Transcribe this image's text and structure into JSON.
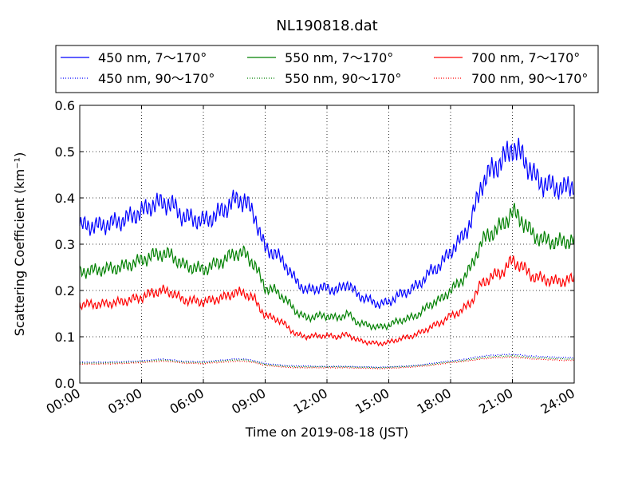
{
  "chart_data": {
    "type": "line",
    "title": "NL190818.dat",
    "xlabel": "Time on 2019-08-18 (JST)",
    "ylabel": "Scattering Coefficient (km⁻¹)",
    "xlim": [
      0,
      24
    ],
    "ylim": [
      0.0,
      0.6
    ],
    "x_ticks": [
      0,
      3,
      6,
      9,
      12,
      15,
      18,
      21,
      24
    ],
    "x_tick_labels": [
      "00:00",
      "03:00",
      "06:00",
      "09:00",
      "12:00",
      "15:00",
      "18:00",
      "21:00",
      "24:00"
    ],
    "y_ticks": [
      0.0,
      0.1,
      0.2,
      0.3,
      0.4,
      0.5,
      0.6
    ],
    "y_tick_labels": [
      "0.0",
      "0.1",
      "0.2",
      "0.3",
      "0.4",
      "0.5",
      "0.6"
    ],
    "grid": true,
    "legend_position": "top, above plot",
    "x": [
      0,
      1,
      2,
      3,
      3.5,
      4,
      4.5,
      5,
      6,
      6.5,
      7,
      7.5,
      8,
      8.5,
      9,
      9.5,
      10,
      10.5,
      11,
      11.5,
      12,
      12.5,
      13,
      13.5,
      14,
      14.5,
      15,
      15.5,
      16,
      16.5,
      17,
      17.5,
      18,
      18.5,
      19,
      19.5,
      20,
      20.5,
      21,
      21.5,
      22,
      22.5,
      23,
      23.5,
      24
    ],
    "series": [
      {
        "name": "450 nm, 7～170°",
        "color": "#0000ff",
        "style": "solid",
        "values": [
          0.34,
          0.34,
          0.35,
          0.37,
          0.385,
          0.39,
          0.385,
          0.36,
          0.35,
          0.36,
          0.375,
          0.395,
          0.395,
          0.36,
          0.29,
          0.28,
          0.255,
          0.22,
          0.2,
          0.205,
          0.205,
          0.2,
          0.215,
          0.19,
          0.18,
          0.17,
          0.175,
          0.19,
          0.2,
          0.215,
          0.24,
          0.255,
          0.285,
          0.31,
          0.35,
          0.43,
          0.46,
          0.48,
          0.51,
          0.49,
          0.45,
          0.43,
          0.425,
          0.42,
          0.43
        ]
      },
      {
        "name": "550 nm, 7～170°",
        "color": "#008000",
        "style": "solid",
        "values": [
          0.24,
          0.245,
          0.25,
          0.265,
          0.275,
          0.28,
          0.275,
          0.255,
          0.245,
          0.255,
          0.265,
          0.28,
          0.28,
          0.255,
          0.205,
          0.2,
          0.18,
          0.155,
          0.14,
          0.145,
          0.145,
          0.14,
          0.15,
          0.13,
          0.125,
          0.12,
          0.125,
          0.135,
          0.14,
          0.15,
          0.17,
          0.18,
          0.2,
          0.22,
          0.25,
          0.305,
          0.325,
          0.34,
          0.37,
          0.35,
          0.32,
          0.31,
          0.305,
          0.305,
          0.31
        ]
      },
      {
        "name": "700 nm, 7～170°",
        "color": "#ff0000",
        "style": "solid",
        "values": [
          0.17,
          0.17,
          0.175,
          0.185,
          0.195,
          0.2,
          0.195,
          0.18,
          0.175,
          0.18,
          0.185,
          0.195,
          0.195,
          0.18,
          0.145,
          0.14,
          0.125,
          0.105,
          0.1,
          0.102,
          0.102,
          0.1,
          0.105,
          0.092,
          0.088,
          0.085,
          0.088,
          0.095,
          0.1,
          0.108,
          0.12,
          0.13,
          0.145,
          0.155,
          0.175,
          0.215,
          0.23,
          0.24,
          0.265,
          0.25,
          0.23,
          0.225,
          0.22,
          0.22,
          0.225
        ]
      },
      {
        "name": "450 nm, 90～170°",
        "color": "#0000ff",
        "style": "dotted",
        "values": [
          0.045,
          0.045,
          0.046,
          0.048,
          0.05,
          0.052,
          0.05,
          0.047,
          0.046,
          0.048,
          0.05,
          0.052,
          0.052,
          0.048,
          0.042,
          0.04,
          0.038,
          0.037,
          0.037,
          0.036,
          0.036,
          0.036,
          0.036,
          0.035,
          0.035,
          0.034,
          0.035,
          0.036,
          0.037,
          0.039,
          0.042,
          0.045,
          0.048,
          0.05,
          0.054,
          0.058,
          0.06,
          0.061,
          0.062,
          0.06,
          0.058,
          0.057,
          0.056,
          0.055,
          0.055
        ]
      },
      {
        "name": "550 nm, 90～170°",
        "color": "#008000",
        "style": "dotted",
        "values": [
          0.043,
          0.043,
          0.044,
          0.046,
          0.048,
          0.05,
          0.048,
          0.045,
          0.044,
          0.046,
          0.048,
          0.05,
          0.05,
          0.046,
          0.04,
          0.038,
          0.036,
          0.035,
          0.035,
          0.035,
          0.035,
          0.035,
          0.035,
          0.034,
          0.034,
          0.033,
          0.034,
          0.035,
          0.036,
          0.038,
          0.04,
          0.043,
          0.046,
          0.048,
          0.051,
          0.055,
          0.057,
          0.058,
          0.059,
          0.057,
          0.055,
          0.054,
          0.053,
          0.052,
          0.052
        ]
      },
      {
        "name": "700 nm, 90～170°",
        "color": "#ff0000",
        "style": "dotted",
        "values": [
          0.041,
          0.041,
          0.042,
          0.044,
          0.046,
          0.047,
          0.046,
          0.043,
          0.042,
          0.044,
          0.045,
          0.047,
          0.047,
          0.044,
          0.038,
          0.036,
          0.034,
          0.033,
          0.033,
          0.033,
          0.033,
          0.033,
          0.033,
          0.032,
          0.032,
          0.031,
          0.032,
          0.033,
          0.034,
          0.036,
          0.038,
          0.041,
          0.044,
          0.046,
          0.049,
          0.052,
          0.054,
          0.055,
          0.056,
          0.054,
          0.052,
          0.051,
          0.05,
          0.049,
          0.049
        ]
      }
    ]
  }
}
